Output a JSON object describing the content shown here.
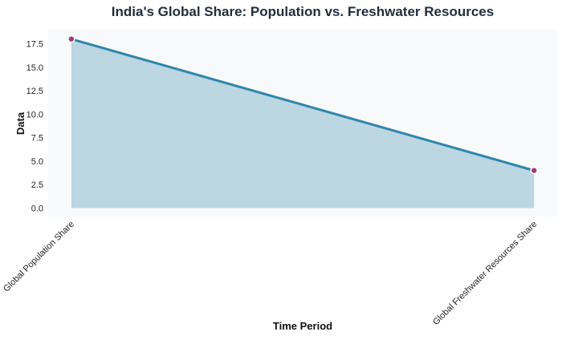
{
  "chart_data": {
    "type": "area",
    "title": "India's Global Share: Population vs. Freshwater Resources",
    "xlabel": "Time Period",
    "ylabel": "Data",
    "categories": [
      "Global Population Share",
      "Global Freshwater Resources Share"
    ],
    "values": [
      18,
      4
    ],
    "ylim": [
      -0.9,
      19.0
    ],
    "yticks": [
      0,
      2.5,
      5,
      7.5,
      10,
      12.5,
      15,
      17.5
    ],
    "ytick_labels": [
      "0.0",
      "2.5",
      "5.0",
      "7.5",
      "10.0",
      "12.5",
      "15.0",
      "17.5"
    ],
    "grid": false,
    "colors": {
      "line": "#2e86ab",
      "fill": "#bcd6e2",
      "marker": "#a23b72",
      "background": "#f7f9fb",
      "text": "#1f2d3d"
    }
  }
}
